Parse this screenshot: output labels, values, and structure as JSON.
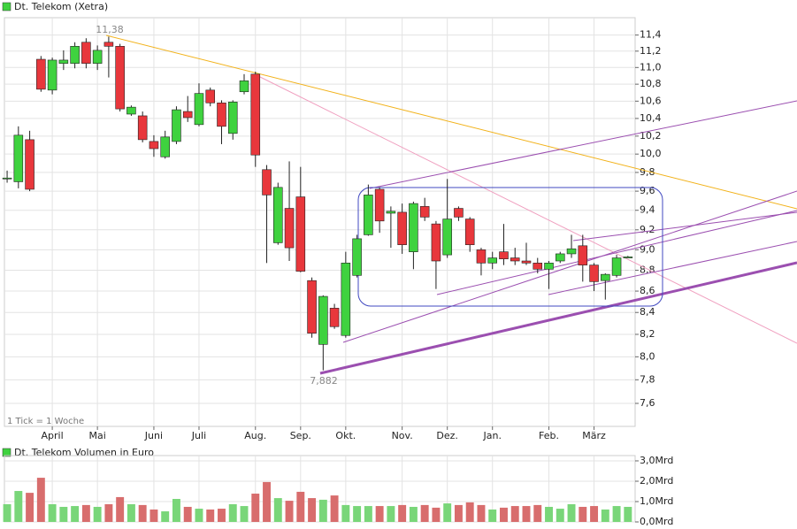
{
  "chart_data": [
    {
      "type": "candlestick",
      "title": "Dt. Telekom (Xetra)",
      "note": "1 Tick = 1 Woche",
      "annotations": [
        "11,38",
        "7,882"
      ],
      "log_scale": true,
      "grid": true,
      "up_color": "#3fd23f",
      "down_color": "#e8373c",
      "xlim": [
        -0.24,
        55.64
      ],
      "xticks": [
        {
          "value": 4,
          "label": "April"
        },
        {
          "value": 8,
          "label": "Mai"
        },
        {
          "value": 13,
          "label": "Juni"
        },
        {
          "value": 17,
          "label": "Juli"
        },
        {
          "value": 22,
          "label": "Aug."
        },
        {
          "value": 26,
          "label": "Sep."
        },
        {
          "value": 30,
          "label": "Okt."
        },
        {
          "value": 35,
          "label": "Nov."
        },
        {
          "value": 39,
          "label": "Dez."
        },
        {
          "value": 43,
          "label": "Jan."
        },
        {
          "value": 48,
          "label": "Feb."
        },
        {
          "value": 52,
          "label": "März"
        }
      ],
      "ylim": [
        7.41,
        11.62
      ],
      "yticks": [
        {
          "value": 7.6,
          "label": "7,6"
        },
        {
          "value": 7.8,
          "label": "7,8"
        },
        {
          "value": 8.0,
          "label": "8,0"
        },
        {
          "value": 8.2,
          "label": "8,2"
        },
        {
          "value": 8.4,
          "label": "8,4"
        },
        {
          "value": 8.6,
          "label": "8,6"
        },
        {
          "value": 8.8,
          "label": "8,8"
        },
        {
          "value": 9.0,
          "label": "9,0"
        },
        {
          "value": 9.2,
          "label": "9,2"
        },
        {
          "value": 9.4,
          "label": "9,4"
        },
        {
          "value": 9.6,
          "label": "9,6"
        },
        {
          "value": 9.8,
          "label": "9,8"
        },
        {
          "value": 10.0,
          "label": "10,0"
        },
        {
          "value": 10.2,
          "label": "10,2"
        },
        {
          "value": 10.4,
          "label": "10,4"
        },
        {
          "value": 10.6,
          "label": "10,6"
        },
        {
          "value": 10.8,
          "label": "10,8"
        },
        {
          "value": 11.0,
          "label": "11,0"
        },
        {
          "value": 11.2,
          "label": "11,2"
        },
        {
          "value": 11.4,
          "label": "11,4"
        }
      ],
      "open": [
        9.73,
        9.7,
        10.16,
        11.1,
        10.73,
        11.05,
        11.05,
        11.31,
        11.05,
        11.31,
        11.26,
        10.45,
        10.43,
        10.14,
        9.97,
        10.14,
        10.48,
        10.33,
        10.73,
        10.58,
        10.23,
        10.71,
        10.92,
        9.83,
        9.07,
        9.42,
        9.54,
        8.7,
        8.11,
        8.44,
        8.19,
        8.75,
        9.15,
        9.62,
        9.37,
        9.38,
        8.98,
        9.44,
        9.26,
        8.95,
        9.42,
        9.31,
        9.0,
        8.87,
        8.98,
        8.92,
        8.89,
        8.87,
        8.81,
        8.89,
        8.96,
        9.04,
        8.85,
        8.7,
        8.75,
        8.92
      ],
      "close": [
        9.74,
        10.21,
        9.62,
        10.74,
        11.09,
        11.09,
        11.26,
        11.05,
        11.21,
        11.26,
        10.51,
        10.53,
        10.16,
        10.06,
        10.19,
        10.5,
        10.41,
        10.69,
        10.58,
        10.31,
        10.59,
        10.84,
        9.99,
        9.56,
        9.64,
        9.02,
        8.79,
        8.21,
        8.55,
        8.27,
        8.87,
        9.11,
        9.56,
        9.29,
        9.39,
        9.05,
        9.47,
        9.33,
        8.89,
        9.31,
        9.33,
        9.05,
        8.87,
        8.92,
        8.91,
        8.89,
        8.87,
        8.81,
        8.87,
        8.96,
        9.01,
        8.85,
        8.69,
        8.76,
        8.92,
        8.93
      ],
      "high": [
        9.82,
        10.31,
        10.26,
        11.14,
        11.12,
        11.21,
        11.31,
        11.36,
        11.27,
        11.38,
        11.29,
        10.55,
        10.48,
        10.21,
        10.26,
        10.54,
        10.66,
        10.81,
        10.76,
        10.61,
        10.61,
        10.92,
        10.95,
        9.88,
        9.69,
        9.92,
        9.86,
        8.73,
        8.56,
        8.48,
        8.98,
        9.15,
        9.67,
        9.64,
        9.44,
        9.47,
        9.49,
        9.53,
        9.29,
        9.73,
        9.44,
        9.33,
        9.02,
        8.98,
        9.26,
        9.02,
        9.07,
        8.92,
        8.89,
        8.98,
        9.15,
        9.15,
        8.87,
        8.77,
        8.95,
        8.94
      ],
      "low": [
        9.69,
        9.63,
        9.6,
        10.71,
        10.68,
        10.97,
        10.99,
        10.99,
        10.97,
        10.88,
        10.48,
        10.43,
        10.13,
        9.97,
        9.95,
        10.11,
        10.36,
        10.31,
        10.54,
        10.11,
        10.16,
        10.68,
        9.86,
        8.87,
        9.05,
        8.89,
        8.78,
        8.17,
        7.882,
        8.25,
        8.17,
        8.73,
        9.14,
        9.17,
        9.02,
        8.96,
        8.81,
        9.29,
        8.62,
        8.92,
        9.29,
        8.98,
        8.75,
        8.81,
        8.85,
        8.85,
        8.85,
        8.77,
        8.62,
        8.87,
        8.92,
        8.69,
        8.6,
        8.52,
        8.73,
        8.92
      ]
    },
    {
      "type": "bar",
      "title": "Dt. Telekom Volumen in Euro",
      "grid": true,
      "up_color": "#79d679",
      "down_color": "#d86d6d",
      "ylim": [
        0,
        3.26
      ],
      "yticks": [
        {
          "value": 0,
          "label": "0,0Mrd"
        },
        {
          "value": 1,
          "label": "1,0Mrd"
        },
        {
          "value": 2,
          "label": "2,0Mrd"
        },
        {
          "value": 3,
          "label": "3,0Mrd"
        }
      ],
      "values": [
        0.87,
        1.52,
        1.43,
        2.17,
        0.87,
        0.74,
        0.78,
        0.83,
        0.74,
        0.87,
        1.22,
        0.87,
        0.83,
        0.61,
        0.52,
        1.13,
        0.74,
        0.65,
        0.61,
        0.65,
        0.87,
        0.78,
        1.39,
        1.96,
        1.17,
        1.04,
        1.48,
        1.17,
        1.09,
        1.3,
        0.83,
        0.78,
        0.78,
        0.78,
        0.78,
        0.83,
        0.74,
        0.83,
        0.7,
        0.91,
        0.83,
        0.96,
        0.83,
        0.61,
        0.7,
        0.78,
        0.78,
        0.83,
        0.74,
        0.65,
        0.87,
        0.74,
        0.78,
        0.61,
        0.78,
        0.74
      ]
    }
  ]
}
